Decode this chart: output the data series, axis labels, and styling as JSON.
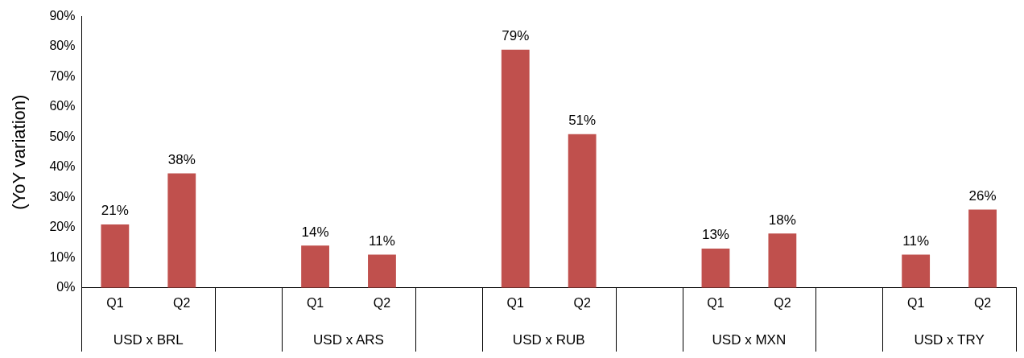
{
  "chart_data": {
    "type": "bar",
    "ylabel": "(YoY variation)",
    "categories": [
      "Q1",
      "Q2",
      null,
      "Q1",
      "Q2",
      null,
      "Q1",
      "Q2",
      null,
      "Q1",
      "Q2",
      null,
      "Q1",
      "Q2"
    ],
    "values": [
      21,
      38,
      null,
      14,
      11,
      null,
      79,
      51,
      null,
      13,
      18,
      null,
      11,
      26
    ],
    "color": "#c0504d",
    "data_labels": true,
    "value_labels": [
      "21%",
      "38%",
      null,
      "14%",
      "11%",
      null,
      "79%",
      "51%",
      null,
      "13%",
      "18%",
      null,
      "11%",
      "26%"
    ],
    "ylim": [
      0,
      90
    ],
    "yticks": [
      {
        "value": 0,
        "label": "0%"
      },
      {
        "value": 10,
        "label": "10%"
      },
      {
        "value": 20,
        "label": "20%"
      },
      {
        "value": 30,
        "label": "30%"
      },
      {
        "value": 40,
        "label": "40%"
      },
      {
        "value": 50,
        "label": "50%"
      },
      {
        "value": 60,
        "label": "60%"
      },
      {
        "value": 70,
        "label": "70%"
      },
      {
        "value": 80,
        "label": "80%"
      },
      {
        "value": 90,
        "label": "90%"
      }
    ],
    "annotations": [
      "USD x BRL",
      "USD x ARS",
      "USD x RUB",
      "USD x MXN",
      "USD x TRY"
    ],
    "grid": false,
    "legend": false
  }
}
